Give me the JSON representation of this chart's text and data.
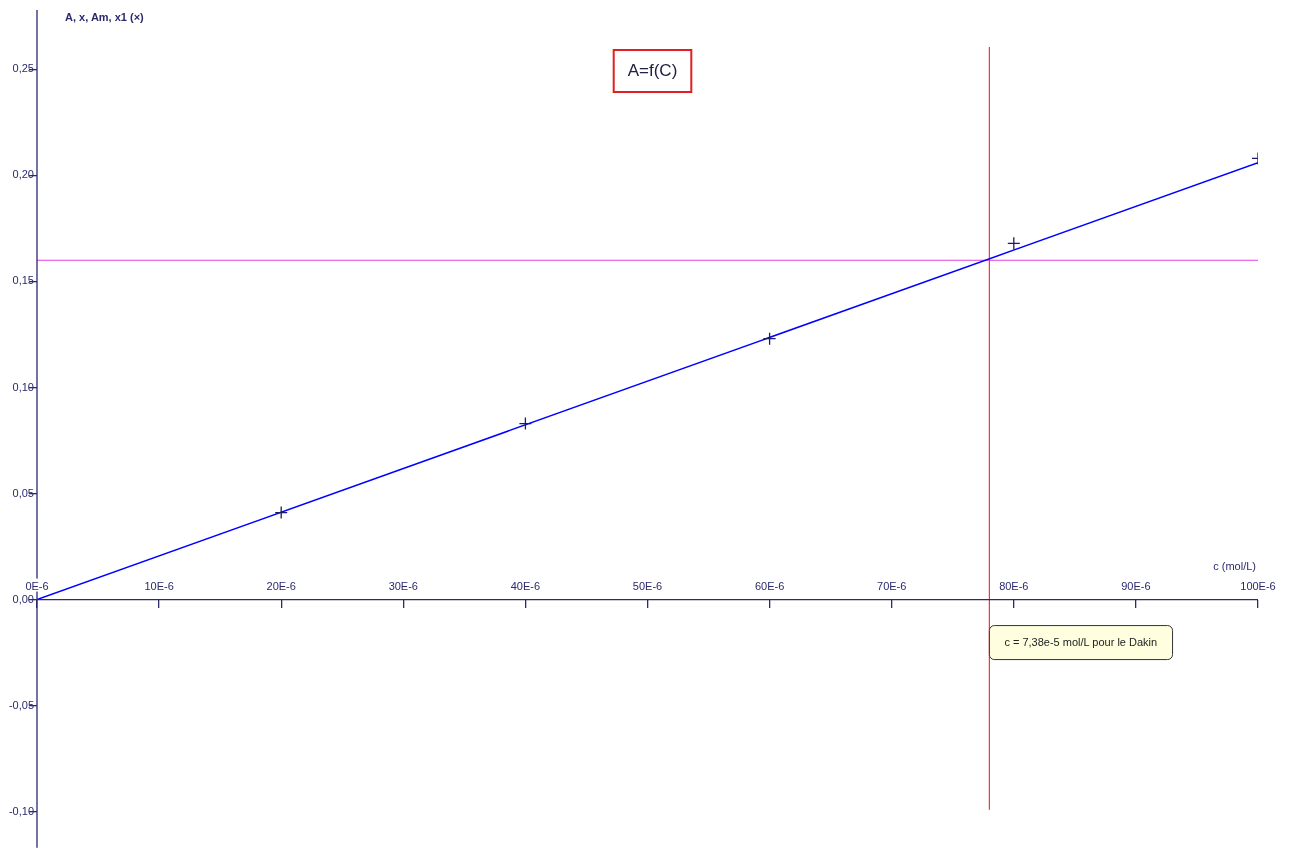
{
  "chart_data": {
    "type": "scatter",
    "title": "A=f(C)",
    "xlabel": "c (mol/L)",
    "ylabel": "A, x, Am, x1 (×)",
    "x": [
      2e-05,
      4e-05,
      6e-05,
      8e-05,
      0.0001
    ],
    "series": [
      {
        "color": "#1a1a6e",
        "marker": "cross",
        "values": [
          0.041,
          0.083,
          0.123,
          0.168,
          0.208
        ]
      },
      {
        "type": "line",
        "color": "#0000ff",
        "marker": "none",
        "x": [
          0,
          0.0001
        ],
        "values": [
          0,
          0.206
        ]
      }
    ],
    "xlim": [
      0,
      0.0001
    ],
    "ylim": [
      -0.117,
      0.278
    ],
    "xticks": [
      {
        "value": 0,
        "label": "0E-6"
      },
      {
        "value": 1e-05,
        "label": "10E-6"
      },
      {
        "value": 2e-05,
        "label": "20E-6"
      },
      {
        "value": 3e-05,
        "label": "30E-6"
      },
      {
        "value": 4e-05,
        "label": "40E-6"
      },
      {
        "value": 5e-05,
        "label": "50E-6"
      },
      {
        "value": 6e-05,
        "label": "60E-6"
      },
      {
        "value": 7e-05,
        "label": "70E-6"
      },
      {
        "value": 8e-05,
        "label": "80E-6"
      },
      {
        "value": 9e-05,
        "label": "90E-6"
      },
      {
        "value": 0.0001,
        "label": "100E-6"
      }
    ],
    "yticks": [
      {
        "value": -0.1,
        "label": "-0,10"
      },
      {
        "value": -0.05,
        "label": "-0,05"
      },
      {
        "value": 0,
        "label": "0,00"
      },
      {
        "value": 0.05,
        "label": "0,05"
      },
      {
        "value": 0.1,
        "label": "0,10"
      },
      {
        "value": 0.15,
        "label": "0,15"
      },
      {
        "value": 0.2,
        "label": "0,20"
      },
      {
        "value": 0.25,
        "label": "0,25"
      }
    ],
    "ref_lines": [
      {
        "axis": "y",
        "value": 0.16,
        "color": "#e040e0"
      },
      {
        "axis": "x",
        "value": 7.8e-05,
        "color": "#ff3030"
      }
    ],
    "annotations": [
      "c = 7,38e-5 mol/L pour le Dakin"
    ],
    "grid": false,
    "legend": false
  }
}
